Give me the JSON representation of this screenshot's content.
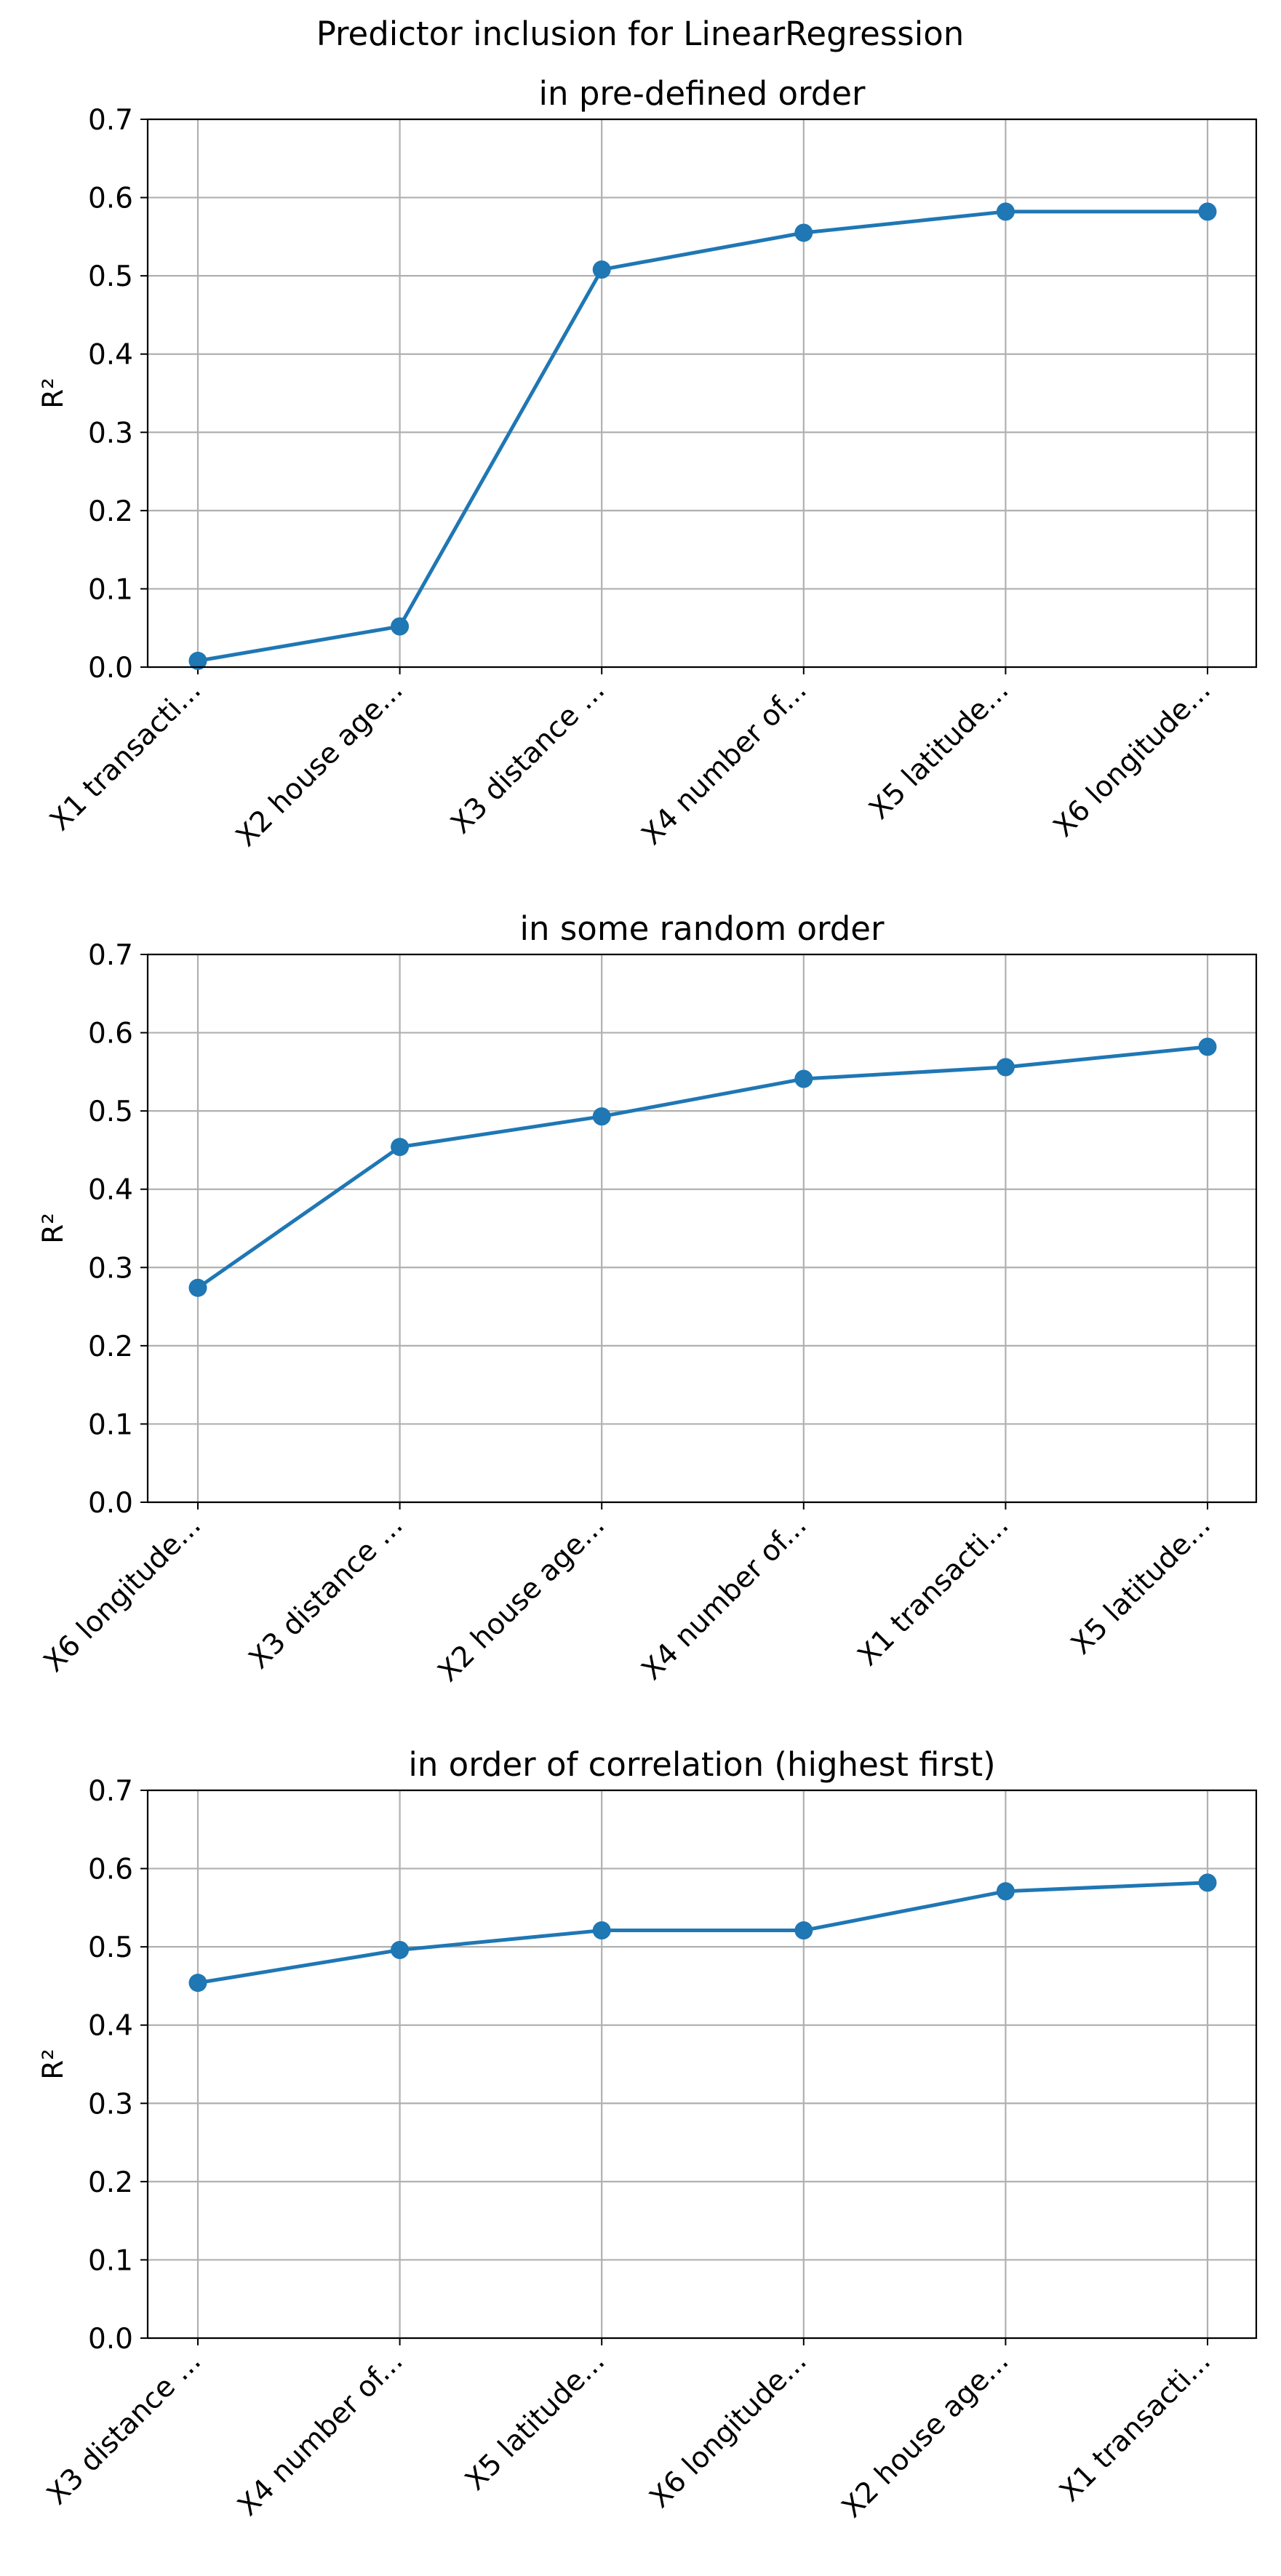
{
  "figure": {
    "suptitle": "Predictor inclusion for LinearRegression"
  },
  "chart_data": [
    {
      "type": "line",
      "title": "in pre-defined order",
      "xlabel": "",
      "ylabel": "R²",
      "ylim": [
        0,
        0.7
      ],
      "yticks": [
        "0.0",
        "0.1",
        "0.2",
        "0.3",
        "0.4",
        "0.5",
        "0.6",
        "0.7"
      ],
      "grid": true,
      "color": "#1f77b4",
      "categories": [
        "X1 transacti...",
        "X2 house age...",
        "X3 distance ...",
        "X4 number of...",
        "X5 latitude...",
        "X6 longitude..."
      ],
      "values": [
        0.008,
        0.052,
        0.508,
        0.555,
        0.582,
        0.582
      ]
    },
    {
      "type": "line",
      "title": "in some random order",
      "xlabel": "",
      "ylabel": "R²",
      "ylim": [
        0,
        0.7
      ],
      "yticks": [
        "0.0",
        "0.1",
        "0.2",
        "0.3",
        "0.4",
        "0.5",
        "0.6",
        "0.7"
      ],
      "grid": true,
      "color": "#1f77b4",
      "categories": [
        "X6 longitude...",
        "X3 distance ...",
        "X2 house age...",
        "X4 number of...",
        "X1 transacti...",
        "X5 latitude..."
      ],
      "values": [
        0.274,
        0.454,
        0.493,
        0.541,
        0.556,
        0.582
      ]
    },
    {
      "type": "line",
      "title": "in order of correlation (highest first)",
      "xlabel": "",
      "ylabel": "R²",
      "ylim": [
        0,
        0.7
      ],
      "yticks": [
        "0.0",
        "0.1",
        "0.2",
        "0.3",
        "0.4",
        "0.5",
        "0.6",
        "0.7"
      ],
      "grid": true,
      "color": "#1f77b4",
      "categories": [
        "X3 distance ...",
        "X4 number of...",
        "X5 latitude...",
        "X6 longitude...",
        "X2 house age...",
        "X1 transacti..."
      ],
      "values": [
        0.454,
        0.496,
        0.521,
        0.521,
        0.571,
        0.582
      ]
    }
  ]
}
